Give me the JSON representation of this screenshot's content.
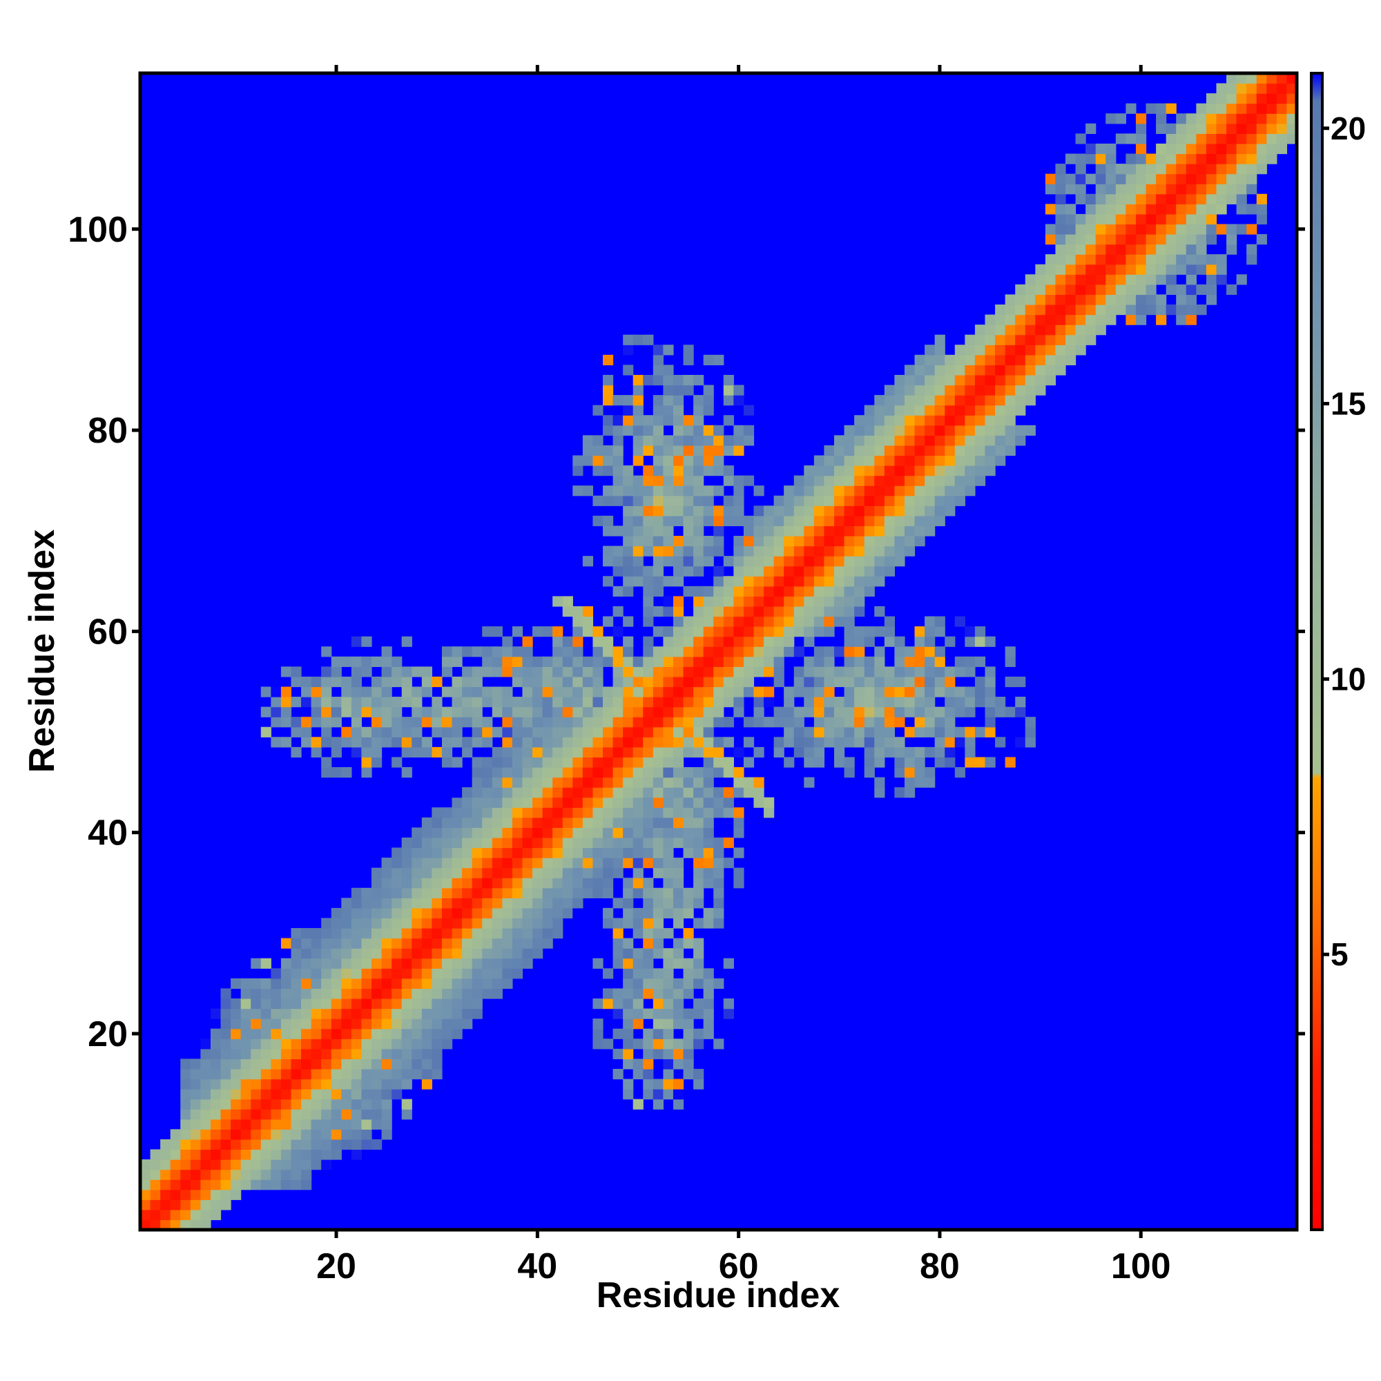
{
  "chart_data": {
    "type": "heatmap",
    "title": "",
    "xlabel": "Residue index",
    "ylabel": "Residue index",
    "xlim": [
      0.5,
      115.5
    ],
    "ylim": [
      0.5,
      115.5
    ],
    "n_residues": 115,
    "x_ticks": [
      20,
      40,
      60,
      80,
      100
    ],
    "y_ticks": [
      20,
      40,
      60,
      80,
      100
    ],
    "x_tick_labels": [
      "20",
      "40",
      "60",
      "80",
      "100"
    ],
    "y_tick_labels": [
      "20",
      "40",
      "60",
      "80",
      "100"
    ],
    "colorbar": {
      "range": [
        0,
        21
      ],
      "ticks": [
        5,
        10,
        15,
        20
      ],
      "tick_labels": [
        "5",
        "10",
        "15",
        "20"
      ],
      "stops": [
        {
          "value": 0,
          "color": "#ff0000"
        },
        {
          "value": 3,
          "color": "#ff2000"
        },
        {
          "value": 5.5,
          "color": "#ff6a00"
        },
        {
          "value": 8.2,
          "color": "#ffa500"
        },
        {
          "value": 8.3,
          "color": "#a8c090"
        },
        {
          "value": 12,
          "color": "#98b49c"
        },
        {
          "value": 17,
          "color": "#6f92b0"
        },
        {
          "value": 20.5,
          "color": "#5878b0"
        },
        {
          "value": 21,
          "color": "#0000ff"
        }
      ]
    },
    "background_color": "#0000ff",
    "features": [
      {
        "kind": "diagonal",
        "from": 1,
        "to": 115
      },
      {
        "kind": "side_band",
        "from": 5,
        "to": 45,
        "width": 9
      },
      {
        "kind": "side_band",
        "from": 60,
        "to": 80,
        "width": 6
      },
      {
        "kind": "cross_contact",
        "center_x": 50,
        "center_y": 55,
        "direction": "anti-diagonal",
        "length": 8
      },
      {
        "kind": "region",
        "x_range": [
          30,
          60
        ],
        "y_range": [
          44,
          62
        ]
      },
      {
        "kind": "region",
        "x_range": [
          46,
          60
        ],
        "y_range": [
          14,
          48
        ]
      },
      {
        "kind": "region",
        "x_range": [
          46,
          60
        ],
        "y_range": [
          62,
          86
        ]
      },
      {
        "kind": "region",
        "x_range": [
          60,
          90
        ],
        "y_range": [
          44,
          62
        ]
      },
      {
        "kind": "region",
        "x_range": [
          12,
          30
        ],
        "y_range": [
          46,
          58
        ]
      },
      {
        "kind": "region",
        "x_range": [
          8,
          30
        ],
        "y_range": [
          10,
          30
        ]
      },
      {
        "kind": "region",
        "x_range": [
          90,
          112
        ],
        "y_range": [
          90,
          112
        ]
      }
    ]
  }
}
